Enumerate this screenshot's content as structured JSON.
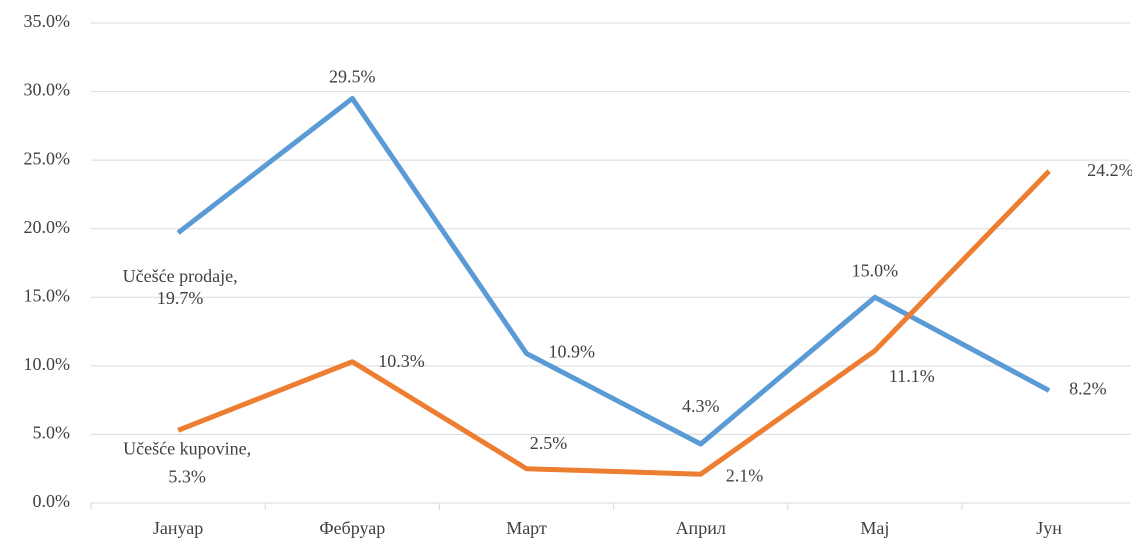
{
  "chart_data": {
    "type": "line",
    "categories": [
      "Јануар",
      "Фебруар",
      "Март",
      "Април",
      "Мај",
      "Јун"
    ],
    "series": [
      {
        "name": "Učešće prodaje",
        "color": "#5b9bd5",
        "values": [
          19.7,
          29.5,
          10.9,
          4.3,
          15.0,
          8.2
        ],
        "value_labels": [
          "19.7%",
          "29.5%",
          "10.9%",
          "4.3%",
          "15.0%",
          "8.2%"
        ]
      },
      {
        "name": "Učešće kupovine",
        "color": "#ed7d31",
        "values": [
          5.3,
          10.3,
          2.5,
          2.1,
          11.1,
          24.2
        ],
        "value_labels": [
          "5.3%",
          "10.3%",
          "2.5%",
          "2.1%",
          "11.1%",
          "24.2%"
        ]
      }
    ],
    "data_label_separator": ",",
    "ylim": [
      0,
      35
    ],
    "yticks": [
      {
        "value": 0,
        "label": "0.0%"
      },
      {
        "value": 5,
        "label": "5.0%"
      },
      {
        "value": 10,
        "label": "10.0%"
      },
      {
        "value": 15,
        "label": "15.0%"
      },
      {
        "value": 20,
        "label": "20.0%"
      },
      {
        "value": 25,
        "label": "25.0%"
      },
      {
        "value": 30,
        "label": "30.0%"
      },
      {
        "value": 35,
        "label": "35.0%"
      }
    ],
    "grid": true
  }
}
